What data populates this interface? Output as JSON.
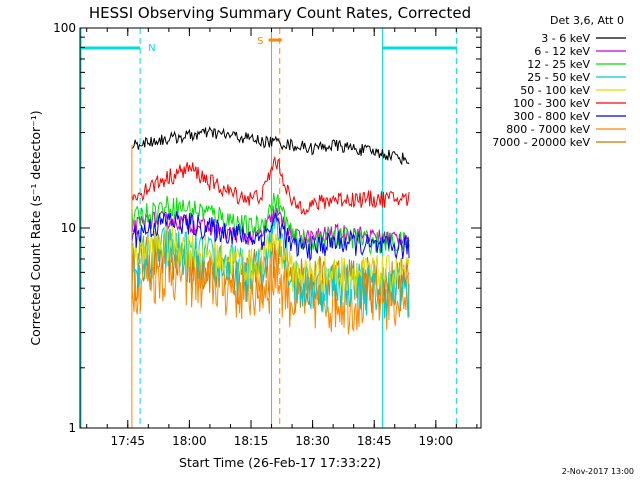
{
  "chart_data": {
    "type": "line",
    "title": "HESSI Observing Summary Count Rates, Corrected",
    "xlabel": "Start Time (26-Feb-17 17:33:22)",
    "ylabel": "Corrected Count Rate (s⁻¹ detector⁻¹)",
    "yscale": "log",
    "ylim": [
      1,
      100
    ],
    "yticks": [
      "1",
      "10",
      "100"
    ],
    "xlim": [
      "17:33:22",
      "19:11:00"
    ],
    "xticks": [
      "17:45",
      "18:00",
      "18:15",
      "18:30",
      "18:45",
      "19:00"
    ],
    "legend_title": "Det 3,6, Att 0",
    "legend_position": "right",
    "data_start": "17:46:00",
    "data_end": "18:53:30",
    "series": [
      {
        "name": "3 - 6 keV",
        "color": "#000000",
        "x": [
          "17:46",
          "17:50",
          "17:55",
          "18:00",
          "18:05",
          "18:10",
          "18:15",
          "18:18",
          "18:21",
          "18:25",
          "18:30",
          "18:35",
          "18:40",
          "18:45",
          "18:50",
          "18:53"
        ],
        "y": [
          26,
          27,
          28,
          29,
          30,
          29,
          28,
          27,
          27,
          26,
          25,
          26,
          25,
          24,
          23,
          22
        ]
      },
      {
        "name": "6 - 12 keV",
        "color": "#cc00cc",
        "x": [
          "17:46",
          "17:50",
          "17:55",
          "18:00",
          "18:05",
          "18:10",
          "18:15",
          "18:18",
          "18:21",
          "18:25",
          "18:30",
          "18:35",
          "18:40",
          "18:45",
          "18:50",
          "18:53"
        ],
        "y": [
          10,
          11,
          11,
          10.5,
          10,
          9.5,
          9,
          9.5,
          12,
          9,
          9,
          9.5,
          9.5,
          9,
          9,
          9
        ]
      },
      {
        "name": "12 - 25 keV",
        "color": "#00dd00",
        "x": [
          "17:46",
          "17:50",
          "17:55",
          "18:00",
          "18:05",
          "18:10",
          "18:15",
          "18:18",
          "18:21",
          "18:25",
          "18:30",
          "18:35",
          "18:40",
          "18:45",
          "18:50",
          "18:53"
        ],
        "y": [
          11,
          12,
          13,
          12.5,
          12,
          11,
          10,
          10.5,
          14,
          9,
          8.5,
          9,
          9,
          8.5,
          8.5,
          8.5
        ]
      },
      {
        "name": "25 - 50 keV",
        "color": "#00cccc",
        "x": [
          "17:46",
          "17:50",
          "17:55",
          "18:00",
          "18:05",
          "18:10",
          "18:15",
          "18:18",
          "18:21",
          "18:25",
          "18:30",
          "18:35",
          "18:40",
          "18:45",
          "18:50",
          "18:53"
        ],
        "y": [
          7,
          7.5,
          8,
          7.5,
          7,
          6.5,
          6,
          6.5,
          12,
          5.5,
          5,
          5.5,
          5.5,
          5,
          5,
          5
        ]
      },
      {
        "name": "50 - 100 keV",
        "color": "#dddd00",
        "x": [
          "17:46",
          "17:50",
          "17:55",
          "18:00",
          "18:05",
          "18:10",
          "18:15",
          "18:18",
          "18:21",
          "18:25",
          "18:30",
          "18:35",
          "18:40",
          "18:45",
          "18:50",
          "18:53"
        ],
        "y": [
          7.5,
          8,
          8.5,
          8,
          7.5,
          7,
          6.5,
          7,
          9,
          6,
          6,
          6,
          6,
          6,
          6,
          6
        ]
      },
      {
        "name": "100 - 300 keV",
        "color": "#ff0000",
        "x": [
          "17:46",
          "17:50",
          "17:55",
          "18:00",
          "18:05",
          "18:10",
          "18:15",
          "18:18",
          "18:21",
          "18:25",
          "18:30",
          "18:35",
          "18:40",
          "18:45",
          "18:50",
          "18:53"
        ],
        "y": [
          14,
          16,
          18,
          20,
          17,
          15,
          14,
          15,
          22,
          13,
          13,
          14,
          14,
          14,
          14,
          14
        ]
      },
      {
        "name": "300 - 800 keV",
        "color": "#0000ff",
        "x": [
          "17:46",
          "17:50",
          "17:55",
          "18:00",
          "18:05",
          "18:10",
          "18:15",
          "18:18",
          "18:21",
          "18:25",
          "18:30",
          "18:35",
          "18:40",
          "18:45",
          "18:50",
          "18:53"
        ],
        "y": [
          9,
          10,
          11,
          10.5,
          10,
          9.5,
          9,
          9,
          11,
          8,
          8,
          8.5,
          8.5,
          8,
          8,
          8
        ]
      },
      {
        "name": "800 - 7000 keV",
        "color": "#ff8800",
        "x": [
          "17:46",
          "17:50",
          "17:55",
          "18:00",
          "18:05",
          "18:10",
          "18:15",
          "18:18",
          "18:21",
          "18:25",
          "18:30",
          "18:35",
          "18:40",
          "18:45",
          "18:50",
          "18:53"
        ],
        "y": [
          5.5,
          6,
          6.5,
          6,
          5.5,
          5.2,
          5,
          5,
          6,
          4.5,
          4.5,
          4.5,
          4.5,
          4.5,
          4.5,
          4.5
        ]
      },
      {
        "name": "7000 - 20000 keV",
        "color": "#cc7700",
        "x": [
          "17:46",
          "17:50",
          "17:55",
          "18:00",
          "18:05",
          "18:10",
          "18:15",
          "18:18",
          "18:21",
          "18:25",
          "18:30",
          "18:35",
          "18:40",
          "18:45",
          "18:50",
          "18:53"
        ],
        "y": [
          6,
          7,
          7.5,
          7,
          6.5,
          6,
          6,
          6,
          7,
          5.5,
          5.5,
          5.5,
          5.5,
          5.5,
          5.5,
          5.5
        ]
      }
    ],
    "annotations": [
      {
        "label": "N",
        "color": "#00dddd",
        "bar": [
          "17:33:22",
          "17:48:00"
        ],
        "lines": [
          "17:48:00",
          "18:47:00",
          "19:05:00"
        ]
      },
      {
        "label": "S",
        "color": "#ff8800",
        "bar": [
          "18:20:00",
          "18:22:00"
        ],
        "lines": [
          "18:20:00",
          "18:22:00"
        ]
      }
    ]
  },
  "footer": {
    "date": "2-Nov-2017 13:00"
  }
}
